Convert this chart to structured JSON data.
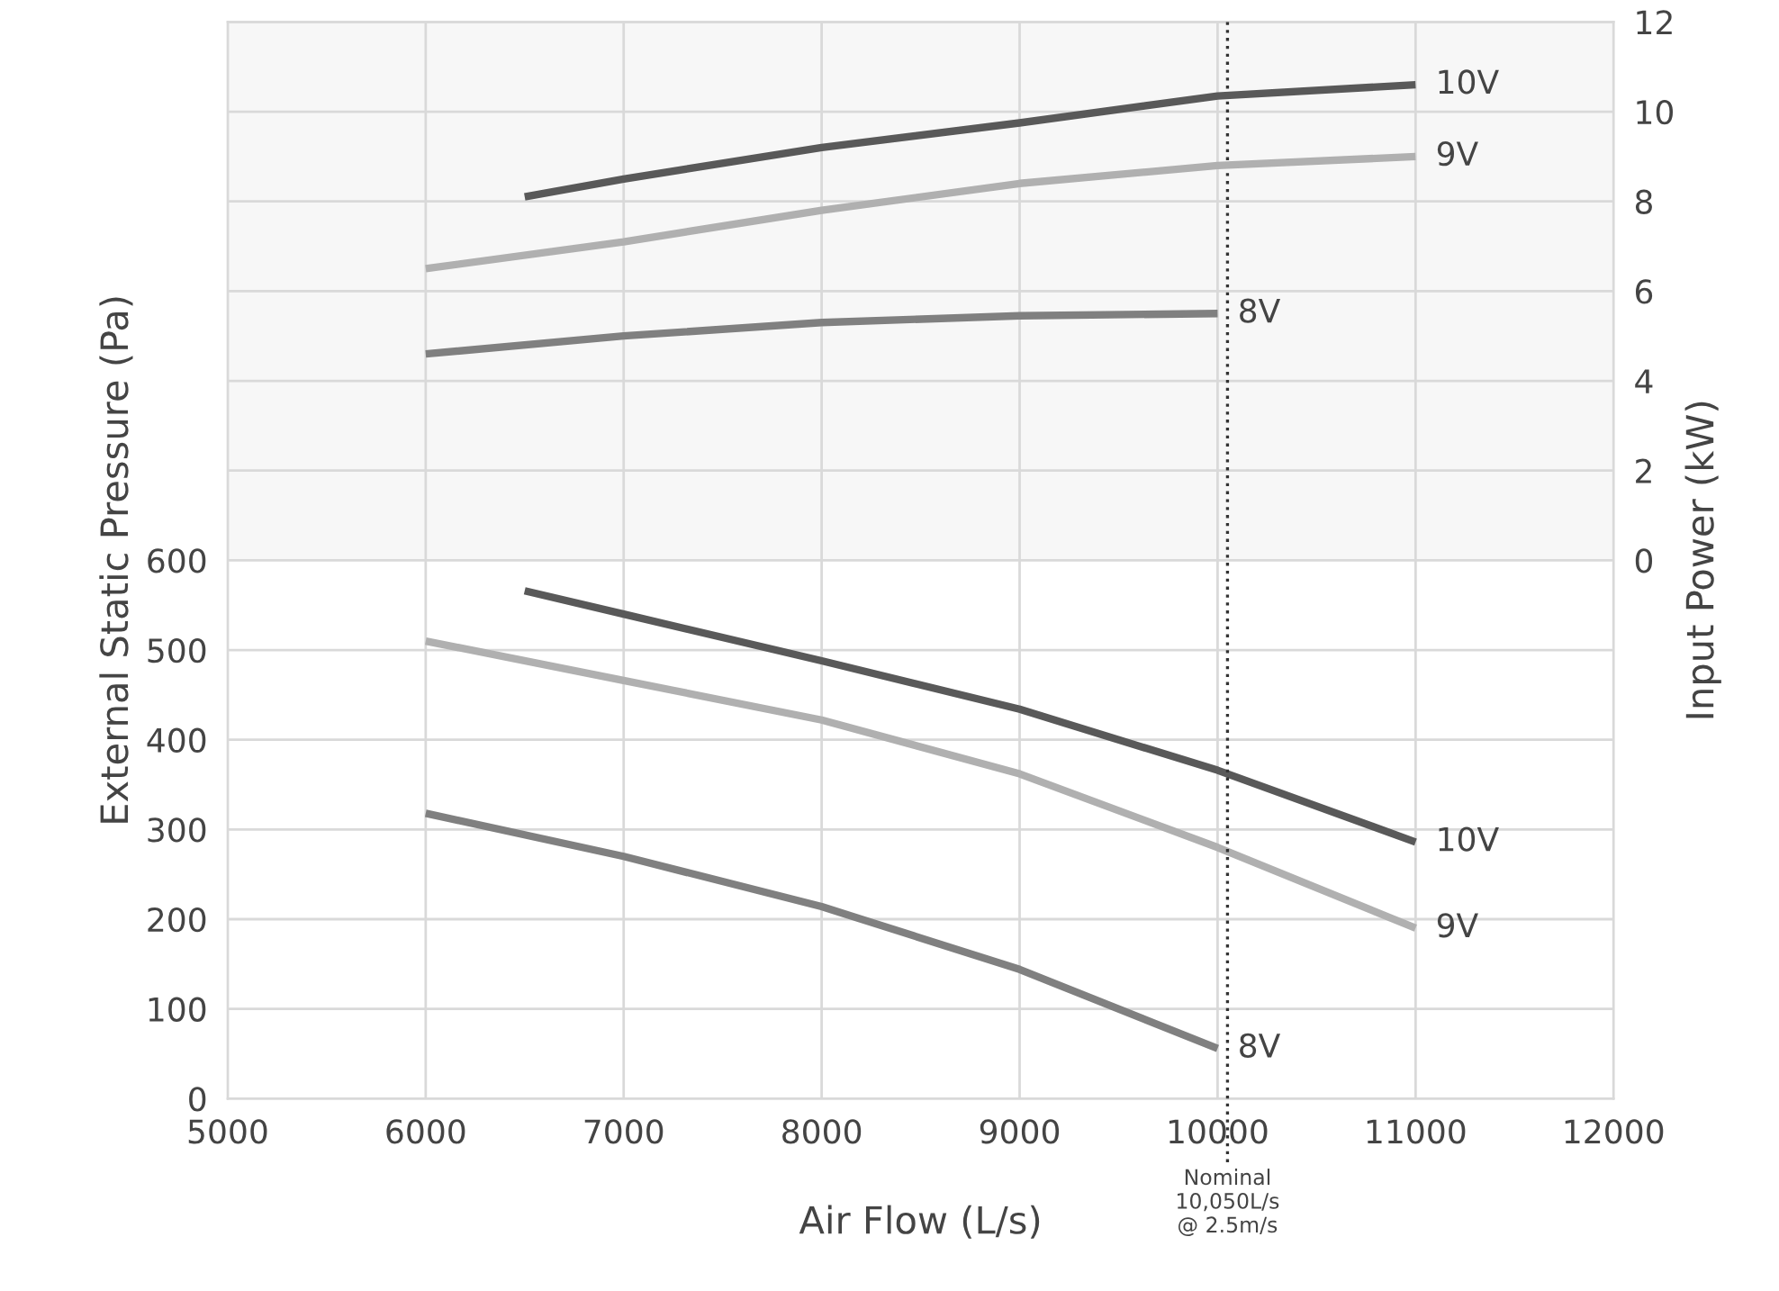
{
  "chart_data": {
    "type": "line",
    "xlabel": "Air Flow (L/s)",
    "ylabel": "External Static Pressure (Pa)",
    "y2label": "Input Power (kW)",
    "xlim": [
      5000,
      12000
    ],
    "xticks": [
      5000,
      6000,
      7000,
      8000,
      9000,
      10000,
      11000,
      12000
    ],
    "ylim": [
      0,
      1200
    ],
    "yticks": [
      0,
      100,
      200,
      300,
      400,
      500,
      600,
      {
        "value": 700,
        "label": null
      },
      {
        "value": 800,
        "label": null
      },
      {
        "value": 900,
        "label": null
      },
      {
        "value": 1000,
        "label": null
      },
      {
        "value": 1100,
        "label": null
      },
      {
        "value": 1200,
        "label": null
      }
    ],
    "y2lim": [
      -12,
      12
    ],
    "y2ticks": [
      0,
      2,
      4,
      6,
      8,
      10,
      12
    ],
    "grid": true,
    "legend": false,
    "marker": "none",
    "line_style": "solid",
    "series": [
      {
        "name": "10V",
        "color": "#595959",
        "x": [
          6500,
          7000,
          8000,
          9000,
          10000,
          11000
        ],
        "values": [
          566,
          540,
          488,
          434,
          366,
          286
        ]
      },
      {
        "name": "9V",
        "color": "#b0b0b0",
        "x": [
          6000,
          7000,
          8000,
          9000,
          10000,
          11000
        ],
        "values": [
          510,
          466,
          422,
          362,
          280,
          190
        ]
      },
      {
        "name": "8V",
        "color": "#808080",
        "x": [
          6000,
          7000,
          8000,
          9000,
          10000
        ],
        "values": [
          318,
          270,
          214,
          144,
          56
        ]
      },
      {
        "name": "10V",
        "color": "#595959",
        "axis": "y2",
        "x": [
          6500,
          7000,
          8000,
          9000,
          10000,
          11000
        ],
        "values": [
          8.1,
          8.5,
          9.2,
          9.75,
          10.35,
          10.6
        ]
      },
      {
        "name": "9V",
        "color": "#b0b0b0",
        "axis": "y2",
        "x": [
          6000,
          7000,
          8000,
          9000,
          10000,
          11000
        ],
        "values": [
          6.5,
          7.1,
          7.8,
          8.4,
          8.8,
          9.0
        ]
      },
      {
        "name": "8V",
        "color": "#808080",
        "axis": "y2",
        "x": [
          6000,
          7000,
          8000,
          9000,
          10000
        ],
        "values": [
          4.6,
          5.0,
          5.3,
          5.45,
          5.5
        ]
      }
    ],
    "bands": [
      {
        "axis": "y2",
        "from": 0,
        "to": 12,
        "color": "#f7f7f7"
      }
    ],
    "ref_lines": [
      {
        "axis": "x",
        "value": 10050,
        "label": "Nominal\n10,050L/s\n@ 2.5m/s",
        "line_style": "dotted",
        "color": "#333333"
      }
    ]
  }
}
